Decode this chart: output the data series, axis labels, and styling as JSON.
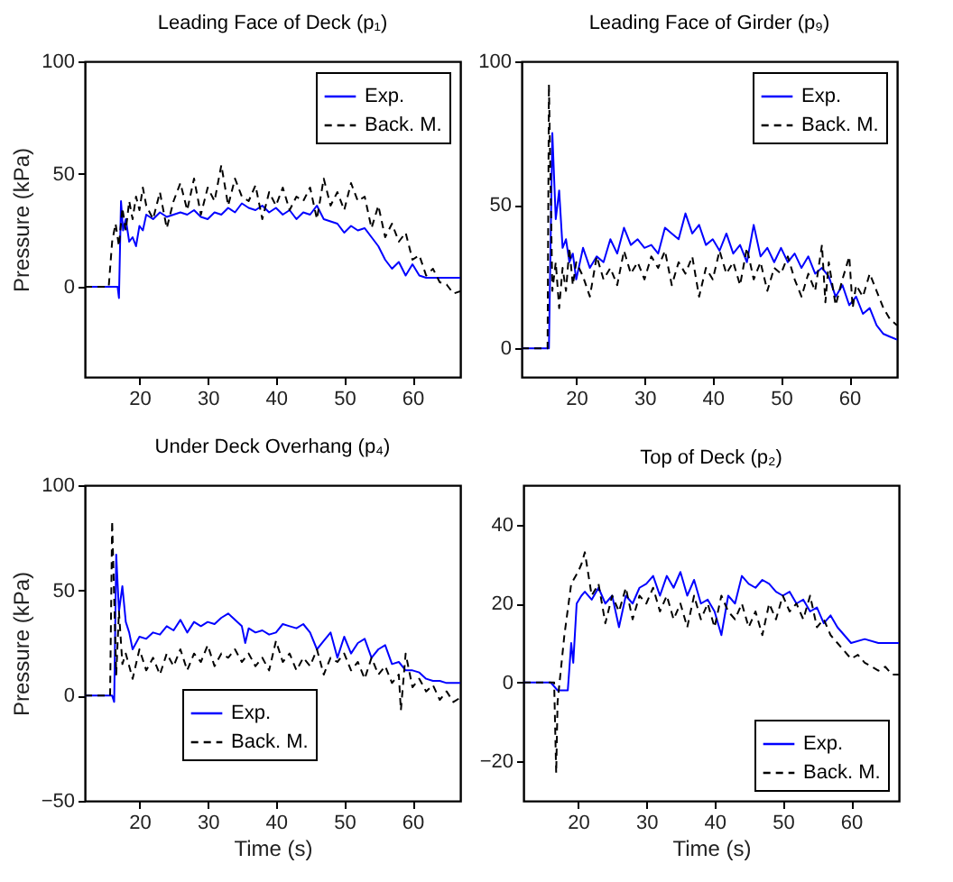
{
  "chart_data": [
    {
      "type": "line",
      "title": "Leading Face of Deck (p₁)",
      "ylabel": "Pressure (kPa)",
      "xlim": [
        12,
        67
      ],
      "xticks": [
        20,
        30,
        40,
        50,
        60
      ],
      "ylim": [
        -40,
        100
      ],
      "yticks": [
        0,
        50,
        100
      ],
      "grid": false,
      "legend": "top right",
      "series": [
        {
          "name": "Exp.",
          "color": "#0000ff",
          "line_style": "solid",
          "x": [
            12,
            16.8,
            17,
            17.3,
            17.6,
            18,
            18.5,
            19,
            19.5,
            20,
            20.5,
            21,
            22,
            23,
            24,
            25,
            26,
            27,
            28,
            29,
            30,
            31,
            32,
            33,
            34,
            35,
            36,
            37,
            38,
            39,
            40,
            41,
            42,
            43,
            44,
            45,
            46,
            47,
            48,
            49,
            50,
            51,
            52,
            53,
            54,
            55,
            56,
            57,
            58,
            59,
            60,
            61,
            62,
            63,
            64,
            65,
            67
          ],
          "values": [
            0,
            0,
            -5,
            38,
            25,
            30,
            20,
            22,
            18,
            27,
            25,
            32,
            30,
            33,
            31,
            32,
            33,
            32,
            34,
            31,
            30,
            33,
            32,
            35,
            33,
            37,
            35,
            34,
            36,
            33,
            35,
            32,
            34,
            30,
            33,
            32,
            36,
            30,
            29,
            28,
            24,
            27,
            25,
            26,
            22,
            18,
            12,
            8,
            11,
            5,
            10,
            5,
            4,
            4,
            4,
            4,
            4
          ]
        },
        {
          "name": "Back. M.",
          "color": "#000000",
          "line_style": "dashed",
          "x": [
            12,
            15.5,
            16,
            16.5,
            17,
            17.5,
            18,
            18.5,
            19,
            19.5,
            20,
            20.5,
            21,
            22,
            23,
            24,
            25,
            26,
            27,
            28,
            29,
            30,
            31,
            32,
            33,
            34,
            35,
            36,
            37,
            38,
            39,
            40,
            41,
            42,
            43,
            44,
            45,
            46,
            47,
            48,
            49,
            50,
            51,
            52,
            53,
            54,
            55,
            56,
            57,
            58,
            59,
            60,
            61,
            62,
            63,
            64,
            65,
            66,
            67
          ],
          "values": [
            0,
            0,
            20,
            28,
            18,
            35,
            25,
            38,
            30,
            40,
            34,
            44,
            36,
            30,
            42,
            26,
            38,
            46,
            34,
            48,
            32,
            44,
            38,
            54,
            36,
            48,
            40,
            38,
            45,
            30,
            42,
            36,
            44,
            34,
            40,
            38,
            44,
            30,
            48,
            36,
            42,
            34,
            46,
            38,
            40,
            26,
            36,
            22,
            28,
            20,
            24,
            12,
            14,
            5,
            8,
            2,
            1,
            -3,
            -2
          ]
        }
      ]
    },
    {
      "type": "line",
      "title": "Leading Face of Girder (p₉)",
      "xlim": [
        12,
        67
      ],
      "xticks": [
        20,
        30,
        40,
        50,
        60
      ],
      "ylim": [
        -10,
        100
      ],
      "yticks": [
        0,
        50,
        100
      ],
      "grid": false,
      "legend": "top right",
      "series": [
        {
          "name": "Exp.",
          "color": "#0000ff",
          "line_style": "solid",
          "x": [
            12,
            16,
            16.5,
            17,
            17.5,
            18,
            18.5,
            19,
            19.5,
            20,
            21,
            22,
            23,
            24,
            25,
            26,
            27,
            28,
            29,
            30,
            31,
            32,
            33,
            34,
            35,
            36,
            37,
            38,
            39,
            40,
            41,
            42,
            43,
            44,
            45,
            46,
            47,
            48,
            49,
            50,
            51,
            52,
            53,
            54,
            55,
            56,
            57,
            58,
            59,
            60,
            61,
            62,
            63,
            64,
            65,
            66,
            67
          ],
          "values": [
            0,
            0,
            75,
            45,
            55,
            35,
            38,
            30,
            33,
            24,
            35,
            28,
            32,
            30,
            38,
            33,
            42,
            36,
            38,
            35,
            36,
            33,
            42,
            40,
            38,
            47,
            40,
            43,
            36,
            38,
            34,
            40,
            33,
            36,
            30,
            43,
            32,
            35,
            30,
            35,
            30,
            33,
            28,
            32,
            26,
            28,
            25,
            18,
            22,
            15,
            18,
            12,
            14,
            8,
            5,
            4,
            3
          ]
        },
        {
          "name": "Back. M.",
          "color": "#000000",
          "line_style": "dashed",
          "x": [
            12,
            15.8,
            16,
            16.5,
            17,
            17.5,
            18,
            18.5,
            19,
            19.5,
            20,
            21,
            22,
            23,
            24,
            25,
            26,
            27,
            28,
            29,
            30,
            31,
            32,
            33,
            34,
            35,
            36,
            37,
            38,
            39,
            40,
            41,
            42,
            43,
            44,
            45,
            46,
            47,
            48,
            49,
            50,
            51,
            52,
            53,
            54,
            55,
            56,
            56.5,
            57,
            58,
            59,
            60,
            60.5,
            61,
            62,
            63,
            64,
            65,
            66,
            67
          ],
          "values": [
            0,
            0,
            92,
            20,
            30,
            14,
            28,
            20,
            35,
            22,
            30,
            25,
            18,
            32,
            24,
            28,
            22,
            34,
            26,
            30,
            24,
            32,
            28,
            34,
            22,
            30,
            26,
            32,
            18,
            28,
            24,
            34,
            26,
            30,
            22,
            35,
            24,
            30,
            20,
            28,
            26,
            32,
            24,
            18,
            26,
            20,
            36,
            16,
            30,
            15,
            24,
            32,
            14,
            22,
            18,
            26,
            20,
            14,
            10,
            8
          ]
        }
      ]
    },
    {
      "type": "line",
      "title": "Under Deck Overhang (p₄)",
      "xlabel": "Time (s)",
      "ylabel": "Pressure (kPa)",
      "xlim": [
        12,
        67
      ],
      "xticks": [
        20,
        30,
        40,
        50,
        60
      ],
      "ylim": [
        -50,
        100
      ],
      "yticks": [
        -50,
        0,
        50,
        100
      ],
      "grid": false,
      "legend": "bottom",
      "series": [
        {
          "name": "Exp.",
          "color": "#0000ff",
          "line_style": "solid",
          "x": [
            12,
            16,
            16.3,
            16.6,
            17,
            17.5,
            18,
            18.5,
            19,
            20,
            21,
            22,
            23,
            24,
            25,
            26,
            27,
            28,
            29,
            30,
            31,
            32,
            33,
            34,
            35,
            35.5,
            36,
            37,
            38,
            39,
            40,
            41,
            42,
            43,
            44,
            45,
            46,
            47,
            48,
            49,
            50,
            51,
            52,
            53,
            54,
            55,
            56,
            57,
            58,
            59,
            60,
            61,
            62,
            63,
            64,
            65,
            67
          ],
          "values": [
            0,
            0,
            -3,
            67,
            40,
            52,
            35,
            30,
            22,
            28,
            27,
            30,
            29,
            33,
            31,
            36,
            30,
            35,
            33,
            35,
            34,
            37,
            39,
            36,
            33,
            25,
            32,
            30,
            31,
            29,
            30,
            34,
            33,
            32,
            34,
            30,
            22,
            26,
            30,
            18,
            28,
            20,
            25,
            27,
            18,
            22,
            24,
            15,
            16,
            12,
            12,
            11,
            8,
            7,
            7,
            6,
            6
          ]
        },
        {
          "name": "Back. M.",
          "color": "#000000",
          "line_style": "dashed",
          "x": [
            12,
            15.7,
            16,
            16.6,
            17,
            17.5,
            18,
            19,
            20,
            21,
            22,
            23,
            24,
            25,
            26,
            27,
            28,
            29,
            30,
            31,
            32,
            33,
            34,
            35,
            36,
            37,
            38,
            39,
            40,
            41,
            42,
            43,
            44,
            45,
            46,
            47,
            48,
            49,
            50,
            51,
            52,
            53,
            54,
            55,
            56,
            57,
            58,
            58.3,
            59,
            60,
            61,
            62,
            63,
            64,
            65,
            66,
            67
          ],
          "values": [
            0,
            0,
            83,
            10,
            40,
            15,
            20,
            8,
            22,
            12,
            18,
            10,
            20,
            14,
            22,
            12,
            20,
            16,
            24,
            14,
            20,
            18,
            22,
            16,
            20,
            14,
            18,
            12,
            26,
            16,
            20,
            12,
            18,
            14,
            22,
            10,
            18,
            16,
            20,
            12,
            16,
            8,
            18,
            10,
            14,
            6,
            10,
            -7,
            20,
            4,
            8,
            2,
            5,
            -2,
            2,
            -3,
            -1
          ]
        }
      ]
    },
    {
      "type": "line",
      "title": "Top of Deck (p₂)",
      "xlabel": "Time (s)",
      "xlim": [
        12,
        67
      ],
      "xticks": [
        20,
        30,
        40,
        50,
        60
      ],
      "ylim": [
        -30,
        50
      ],
      "yticks": [
        -20,
        0,
        20,
        40
      ],
      "grid": false,
      "legend": "bottom right",
      "series": [
        {
          "name": "Exp.",
          "color": "#0000ff",
          "line_style": "solid",
          "x": [
            12,
            16,
            17,
            18.5,
            19,
            19.3,
            19.8,
            20.5,
            21,
            22,
            23,
            24,
            25,
            26,
            27,
            28,
            29,
            30,
            31,
            32,
            33,
            34,
            35,
            36,
            37,
            38,
            39,
            40,
            41,
            42,
            43,
            44,
            45,
            46,
            47,
            48,
            49,
            50,
            51,
            52,
            53,
            54,
            55,
            56,
            57,
            58,
            59,
            60,
            62,
            64,
            67
          ],
          "values": [
            0,
            0,
            -2,
            -2,
            10,
            5,
            20,
            22,
            23,
            21,
            24,
            20,
            22,
            14,
            22,
            20,
            24,
            25,
            27,
            22,
            27,
            24,
            28,
            22,
            26,
            20,
            21,
            18,
            12,
            22,
            20,
            27,
            25,
            24,
            26,
            25,
            23,
            22,
            23,
            20,
            21,
            18,
            19,
            15,
            17,
            14,
            12,
            10,
            11,
            10,
            10
          ]
        },
        {
          "name": "Back. M.",
          "color": "#000000",
          "line_style": "dashed",
          "x": [
            12,
            16.5,
            16.8,
            17,
            18,
            19,
            20,
            20.5,
            21,
            22,
            23,
            24,
            25,
            26,
            27,
            28,
            29,
            30,
            31,
            32,
            33,
            34,
            35,
            36,
            37,
            38,
            39,
            40,
            41,
            42,
            43,
            44,
            45,
            46,
            47,
            48,
            49,
            50,
            51,
            52,
            53,
            54,
            55,
            56,
            57,
            58,
            59,
            60,
            61,
            62,
            63,
            64,
            65,
            66,
            67
          ],
          "values": [
            0,
            0,
            -23,
            -5,
            12,
            25,
            28,
            30,
            33,
            22,
            25,
            15,
            22,
            18,
            24,
            16,
            22,
            20,
            24,
            18,
            22,
            16,
            20,
            14,
            22,
            16,
            20,
            14,
            22,
            18,
            16,
            20,
            14,
            18,
            12,
            20,
            16,
            22,
            18,
            20,
            16,
            22,
            14,
            16,
            12,
            10,
            8,
            6,
            7,
            5,
            4,
            3,
            4,
            2,
            2
          ]
        }
      ]
    }
  ]
}
